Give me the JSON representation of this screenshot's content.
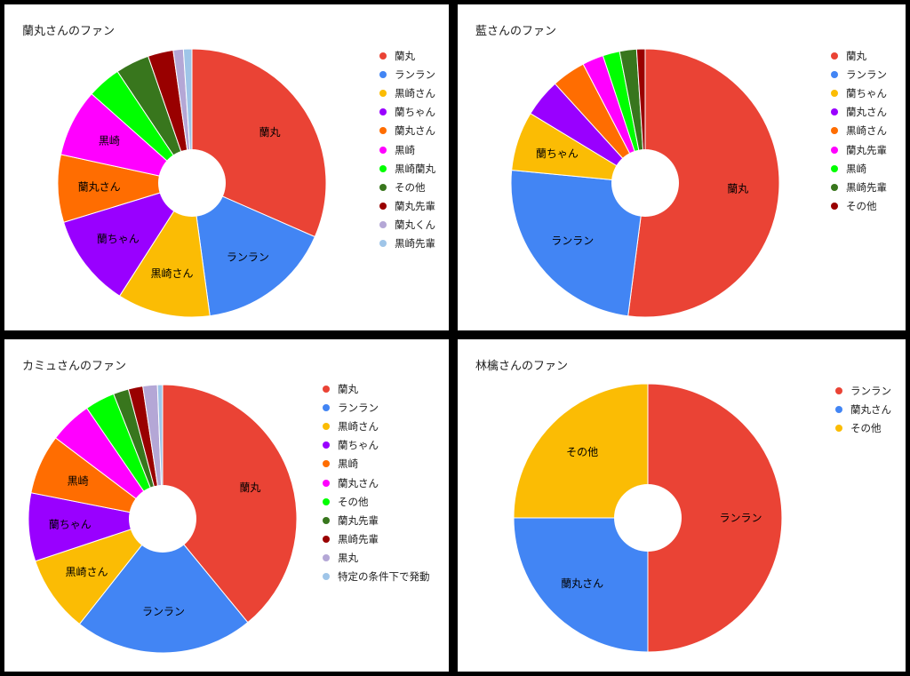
{
  "chart_data": [
    {
      "type": "pie",
      "title": "蘭丸さんのファン",
      "slices": [
        {
          "label": "蘭丸",
          "value": 31,
          "color": "#ea4335",
          "show_label": true
        },
        {
          "label": "ランラン",
          "value": 16,
          "color": "#4285f4",
          "show_label": true
        },
        {
          "label": "黒崎さん",
          "value": 11,
          "color": "#fbbc04",
          "show_label": true
        },
        {
          "label": "蘭ちゃん",
          "value": 11,
          "color": "#9900ff",
          "show_label": true
        },
        {
          "label": "蘭丸さん",
          "value": 8,
          "color": "#ff6d01",
          "show_label": true
        },
        {
          "label": "黒崎",
          "value": 8,
          "color": "#ff00ff",
          "show_label": true
        },
        {
          "label": "黒崎蘭丸",
          "value": 4,
          "color": "#00ff00",
          "show_label": false
        },
        {
          "label": "その他",
          "value": 4,
          "color": "#38761d",
          "show_label": false
        },
        {
          "label": "蘭丸先輩",
          "value": 3,
          "color": "#990000",
          "show_label": false
        },
        {
          "label": "蘭丸くん",
          "value": 1.2,
          "color": "#b4a7d6",
          "show_label": false
        },
        {
          "label": "黒崎先輩",
          "value": 1,
          "color": "#9fc5e8",
          "show_label": false
        }
      ]
    },
    {
      "type": "pie",
      "title": "藍さんのファン",
      "slices": [
        {
          "label": "蘭丸",
          "value": 51,
          "color": "#ea4335",
          "show_label": true
        },
        {
          "label": "ランラン",
          "value": 24,
          "color": "#4285f4",
          "show_label": true
        },
        {
          "label": "蘭ちゃん",
          "value": 7,
          "color": "#fbbc04",
          "show_label": true
        },
        {
          "label": "蘭丸さん",
          "value": 4.5,
          "color": "#9900ff",
          "show_label": false
        },
        {
          "label": "黒崎さん",
          "value": 4,
          "color": "#ff6d01",
          "show_label": false
        },
        {
          "label": "蘭丸先輩",
          "value": 2.5,
          "color": "#ff00ff",
          "show_label": false
        },
        {
          "label": "黒崎",
          "value": 2,
          "color": "#00ff00",
          "show_label": false
        },
        {
          "label": "黒崎先輩",
          "value": 2,
          "color": "#38761d",
          "show_label": false
        },
        {
          "label": "その他",
          "value": 1,
          "color": "#990000",
          "show_label": false
        }
      ]
    },
    {
      "type": "pie",
      "title": "カミュさんのファン",
      "slices": [
        {
          "label": "蘭丸",
          "value": 38,
          "color": "#ea4335",
          "show_label": true
        },
        {
          "label": "ランラン",
          "value": 21,
          "color": "#4285f4",
          "show_label": true
        },
        {
          "label": "黒崎さん",
          "value": 9,
          "color": "#fbbc04",
          "show_label": true
        },
        {
          "label": "蘭ちゃん",
          "value": 8,
          "color": "#9900ff",
          "show_label": true
        },
        {
          "label": "黒崎",
          "value": 7,
          "color": "#ff6d01",
          "show_label": true
        },
        {
          "label": "蘭丸さん",
          "value": 5,
          "color": "#ff00ff",
          "show_label": false
        },
        {
          "label": "その他",
          "value": 3.5,
          "color": "#00ff00",
          "show_label": false
        },
        {
          "label": "蘭丸先輩",
          "value": 1.8,
          "color": "#38761d",
          "show_label": false
        },
        {
          "label": "黒崎先輩",
          "value": 1.7,
          "color": "#990000",
          "show_label": false
        },
        {
          "label": "黒丸",
          "value": 1.7,
          "color": "#b4a7d6",
          "show_label": false
        },
        {
          "label": "特定の条件下で発動",
          "value": 0.6,
          "color": "#9fc5e8",
          "show_label": false
        }
      ]
    },
    {
      "type": "pie",
      "title": "林檎さんのファン",
      "slices": [
        {
          "label": "ランラン",
          "value": 50,
          "color": "#ea4335",
          "show_label": true
        },
        {
          "label": "蘭丸さん",
          "value": 25,
          "color": "#4285f4",
          "show_label": true
        },
        {
          "label": "その他",
          "value": 25,
          "color": "#fbbc04",
          "show_label": true
        }
      ]
    }
  ]
}
